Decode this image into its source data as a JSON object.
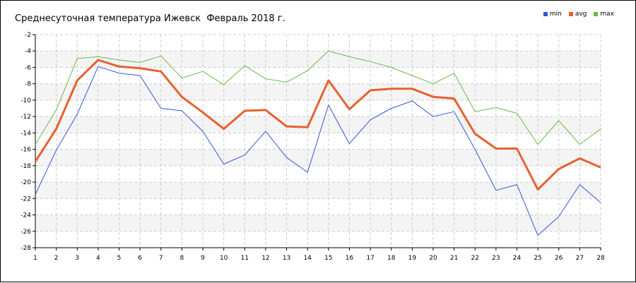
{
  "chart_data": {
    "type": "line",
    "title": "Среднесуточная температура Ижевск  Февраль 2018 г.",
    "x": [
      1,
      2,
      3,
      4,
      5,
      6,
      7,
      8,
      9,
      10,
      11,
      12,
      13,
      14,
      15,
      16,
      17,
      18,
      19,
      20,
      21,
      22,
      23,
      24,
      25,
      26,
      27,
      28
    ],
    "ylim": [
      -28,
      -2
    ],
    "yticks": [
      -2,
      -4,
      -6,
      -8,
      -10,
      -12,
      -14,
      -16,
      -18,
      -20,
      -22,
      -24,
      -26,
      -28
    ],
    "grid": true,
    "legend_position": "top-right",
    "series": [
      {
        "name": "min",
        "color": "#3355dd",
        "values": [
          -21.5,
          -16.1,
          -11.7,
          -5.9,
          -6.7,
          -7.0,
          -11.0,
          -11.3,
          -13.8,
          -17.8,
          -16.7,
          -13.8,
          -17.0,
          -18.8,
          -10.6,
          -15.3,
          -12.4,
          -11.0,
          -10.1,
          -12.0,
          -11.4,
          -16.0,
          -21.0,
          -20.3,
          -26.5,
          -24.2,
          -20.3,
          -22.5
        ]
      },
      {
        "name": "avg",
        "color": "#e86030",
        "values": [
          -17.5,
          -13.5,
          -7.6,
          -5.1,
          -5.9,
          -6.1,
          -6.5,
          -9.6,
          -11.5,
          -13.5,
          -11.3,
          -11.2,
          -13.2,
          -13.3,
          -7.6,
          -11.1,
          -8.8,
          -8.6,
          -8.6,
          -9.6,
          -9.8,
          -14.1,
          -15.9,
          -15.9,
          -20.9,
          -18.4,
          -17.1,
          -18.2
        ]
      },
      {
        "name": "max",
        "color": "#66bb44",
        "values": [
          -15.4,
          -11.2,
          -4.9,
          -4.7,
          -5.1,
          -5.4,
          -4.6,
          -7.3,
          -6.5,
          -8.1,
          -5.8,
          -7.4,
          -7.8,
          -6.4,
          -4.0,
          -4.7,
          -5.3,
          -6.0,
          -7.0,
          -8.0,
          -6.7,
          -11.4,
          -10.9,
          -11.6,
          -15.4,
          -12.5,
          -15.4,
          -13.5
        ]
      }
    ]
  }
}
